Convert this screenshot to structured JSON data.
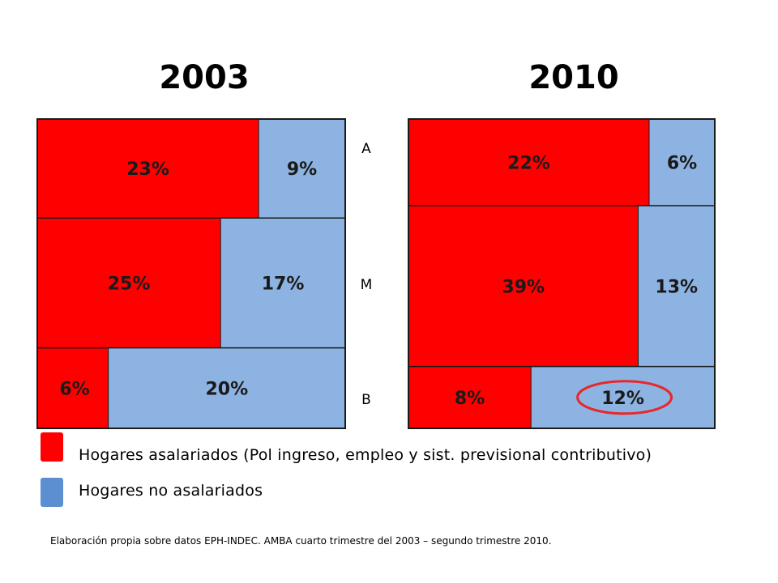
{
  "colors": {
    "salaried": "#ff0000",
    "non_salaried": "#8db3e2",
    "legend_non_salaried": "#5b8fd1",
    "highlight_ellipse": "#e8272a",
    "border": "#1a1a1a"
  },
  "row_labels": [
    "A",
    "M",
    "B"
  ],
  "legend": {
    "salaried": "Hogares asalariados (Pol ingreso, empleo y sist. previsional contributivo)",
    "non_salaried": "Hogares no asalariados"
  },
  "footnote": "Elaboración propia sobre datos EPH-INDEC. AMBA  cuarto trimestre del 2003 – segundo trimestre 2010.",
  "chart_data": [
    {
      "type": "mosaic",
      "title": "2003",
      "rows": [
        "A",
        "M",
        "B"
      ],
      "series": [
        {
          "name": "Hogares asalariados",
          "values": [
            23,
            25,
            6
          ],
          "labels": [
            "23%",
            "25%",
            "6%"
          ]
        },
        {
          "name": "Hogares no asalariados",
          "values": [
            9,
            17,
            20
          ],
          "labels": [
            "9%",
            "17%",
            "20%"
          ]
        }
      ]
    },
    {
      "type": "mosaic",
      "title": "2010",
      "rows": [
        "A",
        "M",
        "B"
      ],
      "series": [
        {
          "name": "Hogares asalariados",
          "values": [
            22,
            39,
            8
          ],
          "labels": [
            "22%",
            "39%",
            "8%"
          ]
        },
        {
          "name": "Hogares no asalariados",
          "values": [
            6,
            13,
            12
          ],
          "labels": [
            "6%",
            "13%",
            "12%"
          ]
        }
      ],
      "highlighted": {
        "series": 1,
        "row": 2
      }
    }
  ]
}
